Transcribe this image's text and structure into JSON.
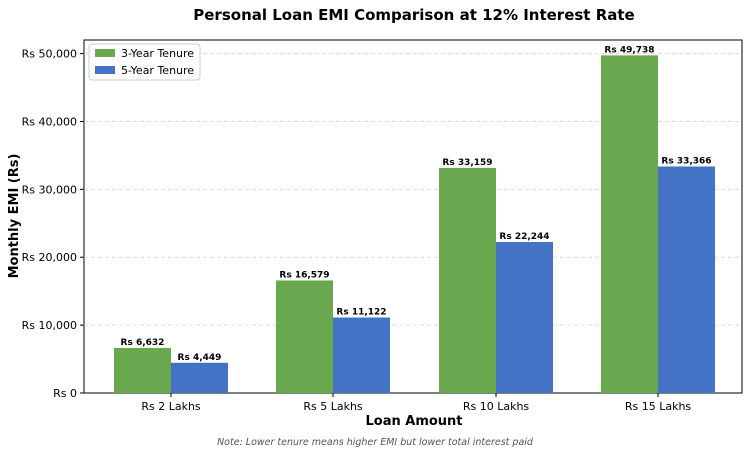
{
  "chart_data": {
    "type": "bar",
    "title": "Personal Loan EMI Comparison at 12% Interest Rate",
    "xlabel": "Loan Amount",
    "ylabel": "Monthly EMI (Rs)",
    "categories": [
      "Rs 2 Lakhs",
      "Rs 5 Lakhs",
      "Rs 10 Lakhs",
      "Rs 15 Lakhs"
    ],
    "series": [
      {
        "name": "3-Year Tenure",
        "color": "#6aa84f",
        "values": [
          6632,
          16579,
          33159,
          49738
        ],
        "labels": [
          "Rs 6,632",
          "Rs 16,579",
          "Rs 33,159",
          "Rs 49,738"
        ]
      },
      {
        "name": "5-Year Tenure",
        "color": "#4472c4",
        "values": [
          4449,
          11122,
          22244,
          33366
        ],
        "labels": [
          "Rs 4,449",
          "Rs 11,122",
          "Rs 22,244",
          "Rs 33,366"
        ]
      }
    ],
    "ylim": [
      0,
      52000
    ],
    "yticks": [
      {
        "value": 0,
        "label": "Rs 0"
      },
      {
        "value": 10000,
        "label": "Rs 10,000"
      },
      {
        "value": 20000,
        "label": "Rs 20,000"
      },
      {
        "value": 30000,
        "label": "Rs 30,000"
      },
      {
        "value": 40000,
        "label": "Rs 40,000"
      },
      {
        "value": 50000,
        "label": "Rs 50,000"
      }
    ],
    "grid": "y-dashed",
    "legend_position": "top-left",
    "note": "Note: Lower tenure means higher EMI but lower total interest paid"
  }
}
